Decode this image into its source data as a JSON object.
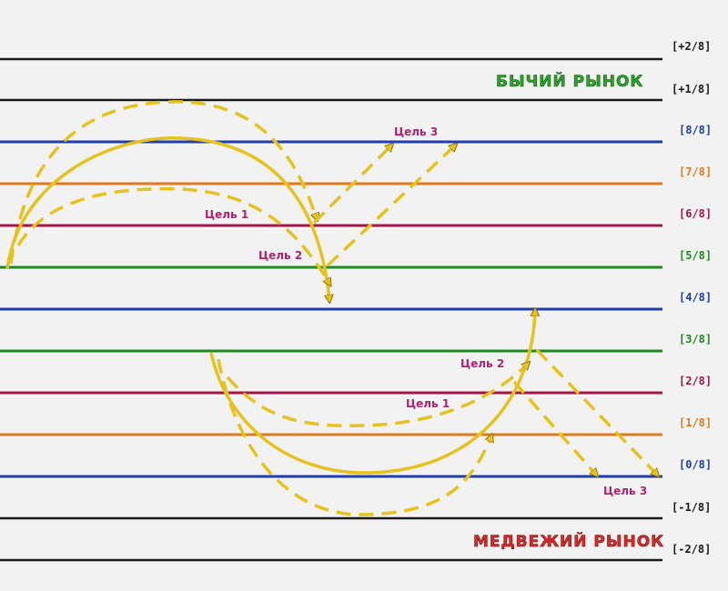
{
  "levels": [
    {
      "id": "p2",
      "label": "[+2/8]",
      "color": "#1a1a1a"
    },
    {
      "id": "p1",
      "label": "[+1/8]",
      "color": "#1a1a1a"
    },
    {
      "id": "l8",
      "label": "[8/8]",
      "color": "#1f3fb0"
    },
    {
      "id": "l7",
      "label": "[7/8]",
      "color": "#e07a1e"
    },
    {
      "id": "l6",
      "label": "[6/8]",
      "color": "#a3164a"
    },
    {
      "id": "l5",
      "label": "[5/8]",
      "color": "#1f8a1f"
    },
    {
      "id": "l4",
      "label": "[4/8]",
      "color": "#1f3fb0"
    },
    {
      "id": "l3",
      "label": "[3/8]",
      "color": "#1f8a1f"
    },
    {
      "id": "l2",
      "label": "[2/8]",
      "color": "#a3164a"
    },
    {
      "id": "l1",
      "label": "[1/8]",
      "color": "#e07a1e"
    },
    {
      "id": "l0",
      "label": "[0/8]",
      "color": "#1f3fb0"
    },
    {
      "id": "m1",
      "label": "[-1/8]",
      "color": "#1a1a1a"
    },
    {
      "id": "m2",
      "label": "[-2/8]",
      "color": "#1a1a1a"
    }
  ],
  "bull_market": {
    "label": "БЫЧИЙ РЫНОК",
    "color": "#2aa52a"
  },
  "bear_market": {
    "label": "МЕДВЕЖИЙ РЫНОК",
    "color": "#d92a2a"
  },
  "targets": {
    "bull_1": "Цель 1",
    "bull_2": "Цель 2",
    "bull_3": "Цель 3",
    "bear_1": "Цель 1",
    "bear_2": "Цель 2",
    "bear_3": "Цель 3"
  },
  "arrow_color": "#e6c21c"
}
